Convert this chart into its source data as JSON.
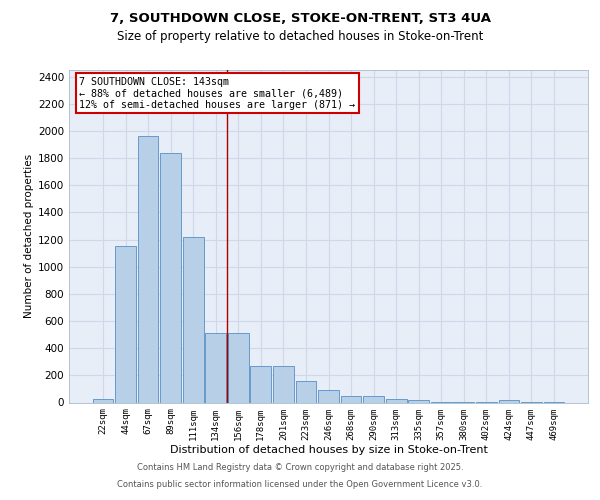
{
  "title_line1": "7, SOUTHDOWN CLOSE, STOKE-ON-TRENT, ST3 4UA",
  "title_line2": "Size of property relative to detached houses in Stoke-on-Trent",
  "xlabel": "Distribution of detached houses by size in Stoke-on-Trent",
  "ylabel": "Number of detached properties",
  "categories": [
    "22sqm",
    "44sqm",
    "67sqm",
    "89sqm",
    "111sqm",
    "134sqm",
    "156sqm",
    "178sqm",
    "201sqm",
    "223sqm",
    "246sqm",
    "268sqm",
    "290sqm",
    "313sqm",
    "335sqm",
    "357sqm",
    "380sqm",
    "402sqm",
    "424sqm",
    "447sqm",
    "469sqm"
  ],
  "values": [
    25,
    1155,
    1960,
    1840,
    1220,
    510,
    510,
    270,
    270,
    155,
    93,
    50,
    45,
    28,
    18,
    5,
    3,
    2,
    18,
    3,
    2
  ],
  "bar_color_normal": "#b8cfe8",
  "bar_color_highlight": "#b8cfe8",
  "highlight_index": 6,
  "annotation_text": "7 SOUTHDOWN CLOSE: 143sqm\n← 88% of detached houses are smaller (6,489)\n12% of semi-detached houses are larger (871) →",
  "vline_x": 5.5,
  "vline_color": "#aa0000",
  "ylim": [
    0,
    2450
  ],
  "yticks": [
    0,
    200,
    400,
    600,
    800,
    1000,
    1200,
    1400,
    1600,
    1800,
    2000,
    2200,
    2400
  ],
  "footer_line1": "Contains HM Land Registry data © Crown copyright and database right 2025.",
  "footer_line2": "Contains public sector information licensed under the Open Government Licence v3.0.",
  "bg_color": "#e8eef8",
  "grid_color": "#d0d8e8",
  "border_color": "#cc0000",
  "ann_box_color": "#ffffff"
}
